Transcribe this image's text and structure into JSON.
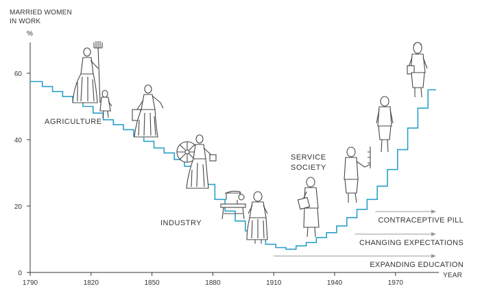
{
  "chart_data": {
    "type": "line",
    "ylabel": "MARRIED WOMEN IN WORK",
    "ylabel_line1": "MARRIED WOMEN",
    "ylabel_line2": "IN WORK",
    "yunit": "%",
    "xlabel": "YEAR",
    "xlim": [
      1790,
      1990
    ],
    "ylim": [
      0,
      64
    ],
    "x_ticks": [
      "1790",
      "1820",
      "1850",
      "1880",
      "1910",
      "1940",
      "1970"
    ],
    "y_ticks": [
      "0",
      "20",
      "40",
      "60"
    ],
    "series": [
      {
        "style": "staircase",
        "color": "#2a9fc9",
        "x": [
          1790,
          1796,
          1801,
          1806,
          1811,
          1816,
          1821,
          1826,
          1831,
          1836,
          1841,
          1846,
          1851,
          1856,
          1861,
          1866,
          1871,
          1876,
          1881,
          1886,
          1891,
          1896,
          1901,
          1906,
          1911,
          1916,
          1921,
          1926,
          1931,
          1936,
          1941,
          1946,
          1951,
          1956,
          1961,
          1966,
          1971,
          1976,
          1981,
          1986
        ],
        "y": [
          57.5,
          56,
          54.5,
          53,
          51.5,
          50,
          48,
          46,
          44.5,
          43,
          41,
          39.5,
          37.5,
          36,
          34,
          32,
          29.5,
          26.5,
          22,
          18.5,
          15.5,
          12.5,
          10,
          8.5,
          7.5,
          7,
          8,
          9,
          10.5,
          12,
          14,
          16.5,
          19,
          22,
          26,
          31,
          37,
          43.5,
          49.5,
          55
        ]
      }
    ],
    "era_labels": [
      "AGRICULTURE",
      "INDUSTRY",
      "SERVICE SOCIETY"
    ],
    "era_label_service_line1": "SERVICE",
    "era_label_service_line2": "SOCIETY",
    "trend_annotations": [
      {
        "label": "CONTRACEPTIVE PILL",
        "from_year": 1960
      },
      {
        "label": "CHANGING EXPECTATIONS",
        "from_year": 1950
      },
      {
        "label": "EXPANDING EDUCATION",
        "from_year": 1910
      }
    ]
  },
  "colors": {
    "line": "#2a9fc9",
    "axis": "#333333",
    "arrow": "#999999",
    "figure_stroke": "#444444"
  },
  "icons": [
    "farm-woman-pitchfork-icon",
    "child-icon",
    "milkmaid-pail-icon",
    "spinning-wheel-woman-icon",
    "sewing-machine-icon",
    "factory-worker-woman-icon",
    "office-woman-folder-icon",
    "teacher-chalkboard-icon",
    "woman-skirt-suit-icon",
    "businesswoman-briefcase-icon"
  ]
}
